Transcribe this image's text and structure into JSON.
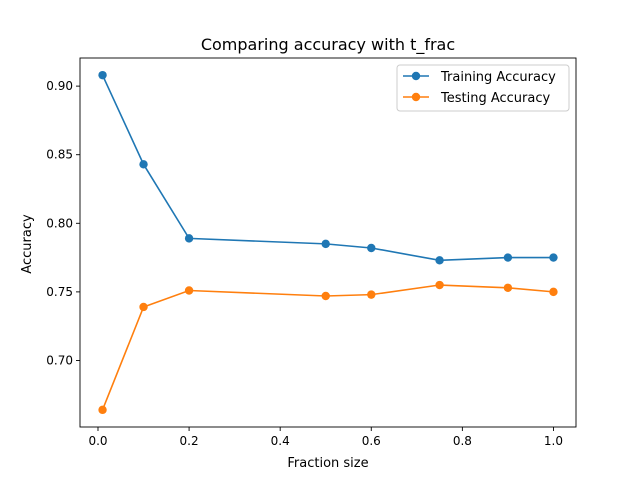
{
  "chart_data": {
    "type": "line",
    "title": "Comparing accuracy with t_frac",
    "xlabel": "Fraction size",
    "ylabel": "Accuracy",
    "xlim": [
      -0.0395,
      1.0495
    ],
    "ylim": [
      0.6515,
      0.9205
    ],
    "xticks": [
      0.0,
      0.2,
      0.4,
      0.6,
      0.8,
      1.0
    ],
    "xtick_labels": [
      "0.0",
      "0.2",
      "0.4",
      "0.6",
      "0.8",
      "1.0"
    ],
    "yticks": [
      0.7,
      0.75,
      0.8,
      0.85,
      0.9
    ],
    "ytick_labels": [
      "0.70",
      "0.75",
      "0.80",
      "0.85",
      "0.90"
    ],
    "grid": false,
    "legend_position": "top-right",
    "x": [
      0.01,
      0.1,
      0.2,
      0.5,
      0.6,
      0.75,
      0.9,
      1.0
    ],
    "series": [
      {
        "name": "Training Accuracy",
        "color": "#1f77b4",
        "values": [
          0.908,
          0.843,
          0.789,
          0.785,
          0.782,
          0.773,
          0.775,
          0.775
        ]
      },
      {
        "name": "Testing Accuracy",
        "color": "#ff7f0e",
        "values": [
          0.664,
          0.739,
          0.751,
          0.747,
          0.748,
          0.755,
          0.753,
          0.75
        ]
      }
    ]
  }
}
